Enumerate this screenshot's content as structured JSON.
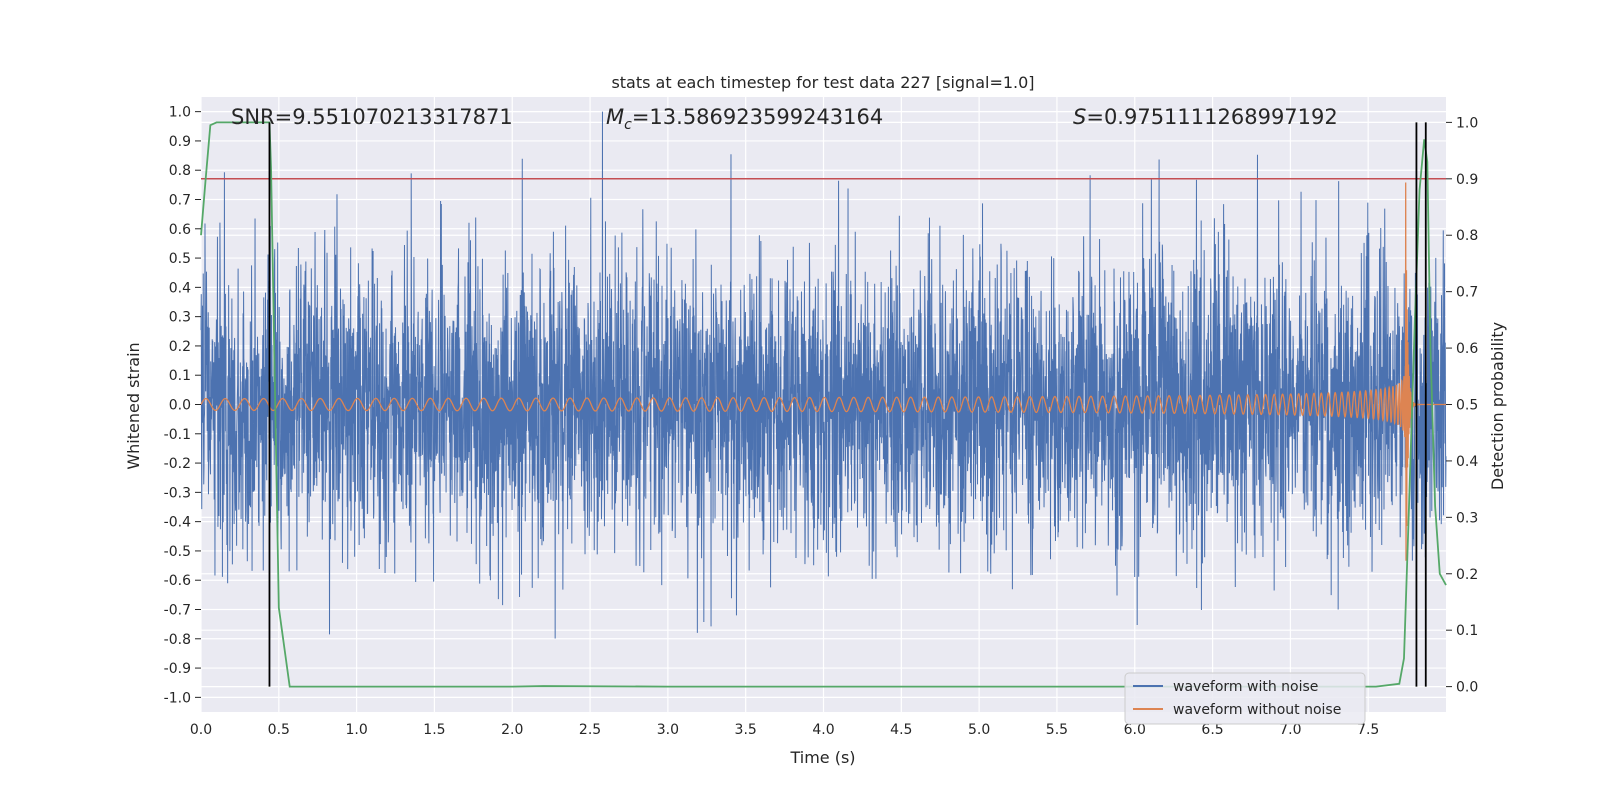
{
  "chart_data": {
    "type": "line",
    "title": "stats at each timestep for test data 227 [signal=1.0]",
    "xlabel": "Time (s)",
    "ylabel_left": "Whitened strain",
    "ylabel_right": "Detection probability",
    "xlim": [
      0.0,
      8.0
    ],
    "ylim_left": [
      -1.05,
      1.05
    ],
    "ylim_right": [
      -0.045,
      1.045
    ],
    "x_ticks": [
      "0.0",
      "0.5",
      "1.0",
      "1.5",
      "2.0",
      "2.5",
      "3.0",
      "3.5",
      "4.0",
      "4.5",
      "5.0",
      "5.5",
      "6.0",
      "6.5",
      "7.0",
      "7.5"
    ],
    "y_ticks_left": [
      "1.0",
      "0.9",
      "0.8",
      "0.7",
      "0.6",
      "0.5",
      "0.4",
      "0.3",
      "0.2",
      "0.1",
      "0.0",
      "-0.1",
      "-0.2",
      "-0.3",
      "-0.4",
      "-0.5",
      "-0.6",
      "-0.7",
      "-0.8",
      "-0.9",
      "-1.0"
    ],
    "y_ticks_right": [
      "1.0",
      "0.9",
      "0.8",
      "0.7",
      "0.6",
      "0.5",
      "0.4",
      "0.3",
      "0.2",
      "0.1",
      "0.0"
    ],
    "annotations": {
      "snr": "SNR=9.551070213317871",
      "mc_symbol": "M",
      "mc_sub": "c",
      "mc_value": "=13.586923599243164",
      "s_symbol": "S",
      "s_value": "=0.9751111268997192"
    },
    "threshold": {
      "axis": "right",
      "value": 0.9,
      "color": "#c44e52"
    },
    "vertical_lines": [
      0.44,
      7.81,
      7.87
    ],
    "series": [
      {
        "name": "waveform with noise",
        "color": "#4c72b0",
        "axis": "left",
        "kind": "noise",
        "sigma": 0.25,
        "peak": 1.0
      },
      {
        "name": "waveform without noise",
        "color": "#dd8452",
        "axis": "left",
        "kind": "chirp",
        "t_merge": 7.74,
        "peak_amplitude": 0.85
      },
      {
        "name": "detection probability",
        "color": "#55a868",
        "axis": "right",
        "show_in_legend": false,
        "x": [
          0.0,
          0.03,
          0.06,
          0.1,
          0.15,
          0.25,
          0.35,
          0.44,
          0.45,
          0.5,
          0.57,
          0.7,
          1.0,
          2.0,
          2.2,
          3.0,
          5.0,
          6.5,
          7.55,
          7.7,
          7.73,
          7.76,
          7.8,
          7.83,
          7.86,
          7.88,
          7.9,
          7.93,
          7.96,
          8.0
        ],
        "y": [
          0.8,
          0.9,
          0.995,
          1.0,
          1.0,
          1.0,
          1.0,
          1.0,
          0.92,
          0.14,
          0.0,
          0.0,
          0.0,
          0.0,
          0.001,
          0.0,
          0.0,
          0.0,
          0.0,
          0.005,
          0.05,
          0.3,
          0.65,
          0.88,
          0.97,
          0.93,
          0.6,
          0.32,
          0.2,
          0.18
        ]
      }
    ],
    "legend_position": "lower-right"
  }
}
